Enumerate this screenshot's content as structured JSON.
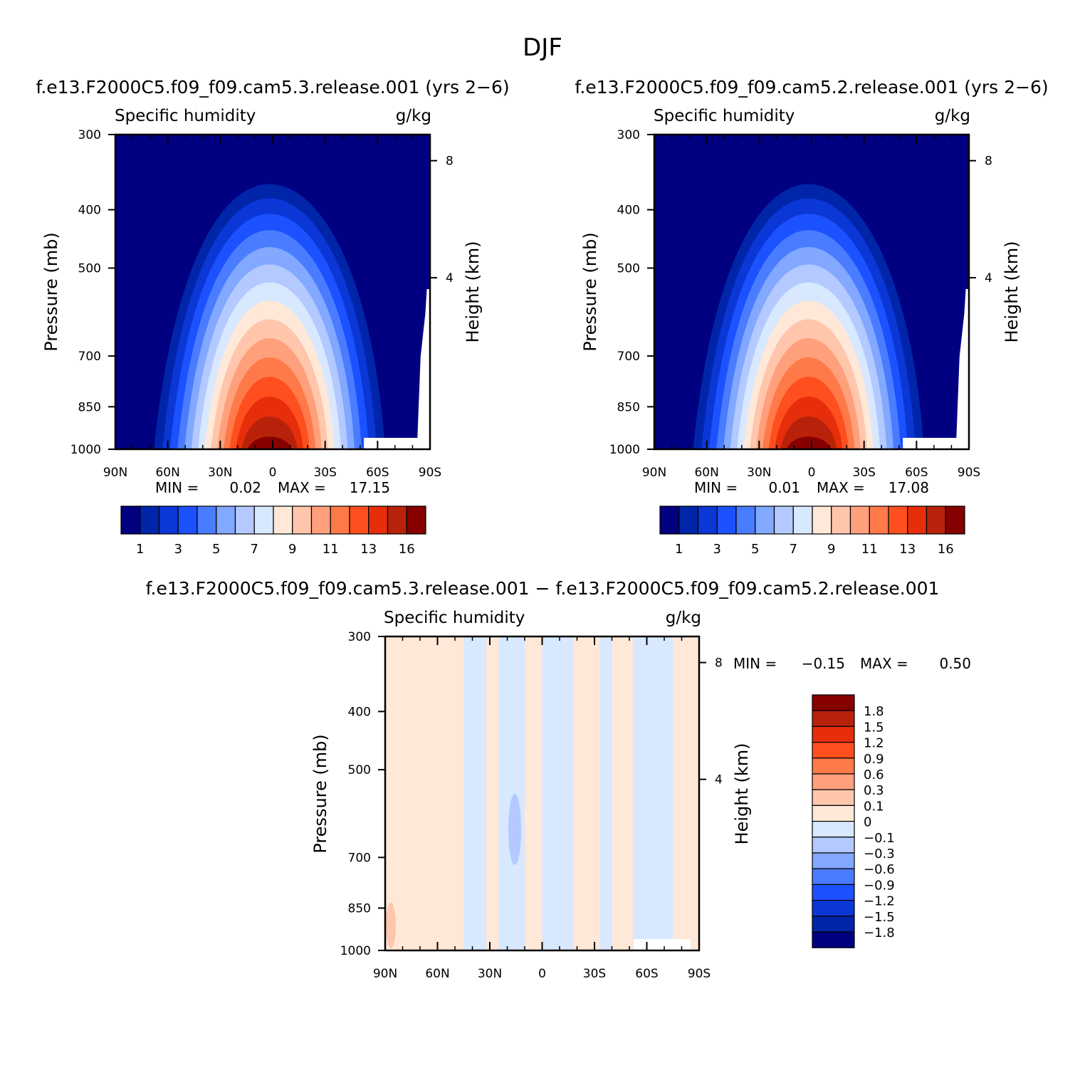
{
  "page_title": "DJF",
  "chart_data": [
    {
      "type": "heatmap",
      "title": "f.e13.F2000C5.f09_f09.cam5.3.release.001 (yrs 2−6)",
      "left_label": "Specific humidity",
      "right_label": "g/kg",
      "ylabel": "Pressure (mb)",
      "ylabel_right": "Height (km)",
      "x_ticks": [
        "90N",
        "60N",
        "30N",
        "0",
        "30S",
        "60S",
        "90S"
      ],
      "y_ticks": [
        "300",
        "400",
        "500",
        "700",
        "850",
        "1000"
      ],
      "y2_ticks": [
        "8",
        "4"
      ],
      "min_label": "MIN =",
      "min_value": "0.02",
      "max_label": "MAX =",
      "max_value": "17.15",
      "colorbar_labels": [
        "1",
        "3",
        "5",
        "7",
        "9",
        "11",
        "13",
        "16"
      ],
      "peak_value": 17.15
    },
    {
      "type": "heatmap",
      "title": "f.e13.F2000C5.f09_f09.cam5.2.release.001 (yrs 2−6)",
      "left_label": "Specific humidity",
      "right_label": "g/kg",
      "ylabel": "Pressure (mb)",
      "ylabel_right": "Height (km)",
      "x_ticks": [
        "90N",
        "60N",
        "30N",
        "0",
        "30S",
        "60S",
        "90S"
      ],
      "y_ticks": [
        "300",
        "400",
        "500",
        "700",
        "850",
        "1000"
      ],
      "y2_ticks": [
        "8",
        "4"
      ],
      "min_label": "MIN =",
      "min_value": "0.01",
      "max_label": "MAX =",
      "max_value": "17.08",
      "colorbar_labels": [
        "1",
        "3",
        "5",
        "7",
        "9",
        "11",
        "13",
        "16"
      ],
      "peak_value": 17.08
    },
    {
      "type": "heatmap",
      "title": "f.e13.F2000C5.f09_f09.cam5.3.release.001 − f.e13.F2000C5.f09_f09.cam5.2.release.001",
      "left_label": "Specific humidity",
      "right_label": "g/kg",
      "ylabel": "Pressure (mb)",
      "ylabel_right": "Height (km)",
      "x_ticks": [
        "90N",
        "60N",
        "30N",
        "0",
        "30S",
        "60S",
        "90S"
      ],
      "y_ticks": [
        "300",
        "400",
        "500",
        "700",
        "850",
        "1000"
      ],
      "y2_ticks": [
        "8",
        "4"
      ],
      "min_label": "MIN =",
      "min_value": "−0.15",
      "max_label": "MAX =",
      "max_value": "0.50",
      "colorbar_labels": [
        "1.8",
        "1.5",
        "1.2",
        "0.9",
        "0.6",
        "0.3",
        "0.1",
        "0",
        "−0.1",
        "−0.3",
        "−0.6",
        "−0.9",
        "−1.2",
        "−1.5",
        "−1.8"
      ],
      "positive_bands_lat": [
        [
          -90,
          -75
        ],
        [
          -52,
          -40
        ],
        [
          -33,
          -18
        ],
        [
          0,
          10
        ],
        [
          25,
          32
        ],
        [
          45,
          90
        ]
      ]
    }
  ],
  "colors": {
    "abs_levels": [
      "#000080",
      "#0025a8",
      "#0a37d6",
      "#1c51ff",
      "#4a7cff",
      "#82a8ff",
      "#b3c9ff",
      "#d7e8ff",
      "#ffe8d8",
      "#ffc6ac",
      "#ffa07c",
      "#ff7a49",
      "#ff4f1e",
      "#e62e0b",
      "#b8220a",
      "#870000"
    ],
    "diff_levels": [
      "#870000",
      "#b8220a",
      "#e62e0b",
      "#ff4f1e",
      "#ff7a49",
      "#ffa07c",
      "#ffc6ac",
      "#ffe8d8",
      "#d7e8ff",
      "#b3c9ff",
      "#82a8ff",
      "#4a7cff",
      "#1c51ff",
      "#0a37d6",
      "#0025a8",
      "#000080"
    ]
  }
}
